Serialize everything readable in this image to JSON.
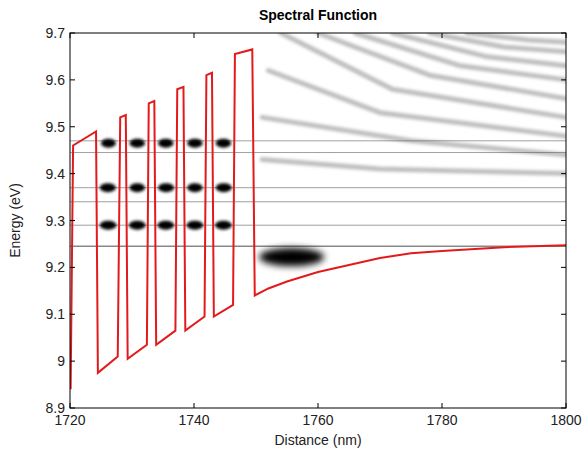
{
  "chart_data": {
    "type": "line",
    "title": "Spectral Function",
    "x_label": "Distance (nm)",
    "y_label": "Energy (eV)",
    "xlim": [
      1720,
      1800
    ],
    "ylim": [
      8.9,
      9.7
    ],
    "xticks": [
      1720,
      1740,
      1760,
      1780,
      1800
    ],
    "yticks": [
      8.9,
      9,
      9.1,
      9.2,
      9.3,
      9.4,
      9.5,
      9.6,
      9.7
    ],
    "series": [
      {
        "color": "#e31a1c",
        "x": [
          1720.1,
          1720.5,
          1724.2,
          1724.5,
          1727.7,
          1728.1,
          1729.0,
          1729.3,
          1732.4,
          1732.7,
          1733.6,
          1733.9,
          1737.0,
          1737.3,
          1738.3,
          1738.6,
          1741.7,
          1742.0,
          1742.9,
          1743.2,
          1746.3,
          1746.6,
          1749.4,
          1749.8,
          1752,
          1755,
          1760,
          1765,
          1770,
          1775,
          1780,
          1790,
          1800
        ],
        "values": [
          8.94,
          9.46,
          9.49,
          8.975,
          9.01,
          9.52,
          9.525,
          9.005,
          9.035,
          9.55,
          9.555,
          9.035,
          9.065,
          9.58,
          9.585,
          9.065,
          9.095,
          9.61,
          9.615,
          9.095,
          9.12,
          9.655,
          9.665,
          9.14,
          9.155,
          9.17,
          9.19,
          9.205,
          9.22,
          9.23,
          9.235,
          9.243,
          9.247
        ]
      }
    ],
    "resonances": [
      9.47,
      9.445,
      9.37,
      9.34,
      9.29,
      9.245
    ],
    "states": [
      {
        "x": [
          1725.0,
          1727.4
        ],
        "energy": 9.465
      },
      {
        "x": [
          1729.6,
          1732.1
        ],
        "energy": 9.465
      },
      {
        "x": [
          1734.2,
          1736.7
        ],
        "energy": 9.465
      },
      {
        "x": [
          1738.9,
          1741.4
        ],
        "energy": 9.465
      },
      {
        "x": [
          1743.5,
          1746.0
        ],
        "energy": 9.465
      },
      {
        "x": [
          1724.8,
          1727.4
        ],
        "energy": 9.37
      },
      {
        "x": [
          1729.6,
          1732.1
        ],
        "energy": 9.37
      },
      {
        "x": [
          1734.2,
          1736.8
        ],
        "energy": 9.37
      },
      {
        "x": [
          1738.9,
          1741.4
        ],
        "energy": 9.37
      },
      {
        "x": [
          1743.5,
          1746.1
        ],
        "energy": 9.37
      },
      {
        "x": [
          1724.8,
          1727.5
        ],
        "energy": 9.29
      },
      {
        "x": [
          1729.5,
          1732.2
        ],
        "energy": 9.29
      },
      {
        "x": [
          1734.1,
          1736.8
        ],
        "energy": 9.29
      },
      {
        "x": [
          1738.8,
          1741.5
        ],
        "energy": 9.29
      },
      {
        "x": [
          1743.4,
          1746.1
        ],
        "energy": 9.29
      },
      {
        "x": [
          1750.5,
          1761.0
        ],
        "energy": 9.222
      }
    ],
    "fringes": [
      {
        "x": [
          1751,
          1770,
          1800
        ],
        "energy": [
          9.43,
          9.41,
          9.4
        ]
      },
      {
        "x": [
          1751,
          1775,
          1800
        ],
        "energy": [
          9.52,
          9.47,
          9.44
        ]
      },
      {
        "x": [
          1752,
          1770,
          1800
        ],
        "energy": [
          9.62,
          9.53,
          9.48
        ]
      },
      {
        "x": [
          1754,
          1772,
          1800
        ],
        "energy": [
          9.7,
          9.58,
          9.52
        ]
      },
      {
        "x": [
          1760,
          1778,
          1800
        ],
        "energy": [
          9.7,
          9.61,
          9.56
        ]
      },
      {
        "x": [
          1766,
          1783,
          1800
        ],
        "energy": [
          9.7,
          9.63,
          9.6
        ]
      },
      {
        "x": [
          1772,
          1787,
          1800
        ],
        "energy": [
          9.7,
          9.65,
          9.63
        ]
      },
      {
        "x": [
          1778,
          1790,
          1800
        ],
        "energy": [
          9.7,
          9.67,
          9.66
        ]
      },
      {
        "x": [
          1784,
          1794,
          1800
        ],
        "energy": [
          9.7,
          9.685,
          9.68
        ]
      }
    ]
  }
}
